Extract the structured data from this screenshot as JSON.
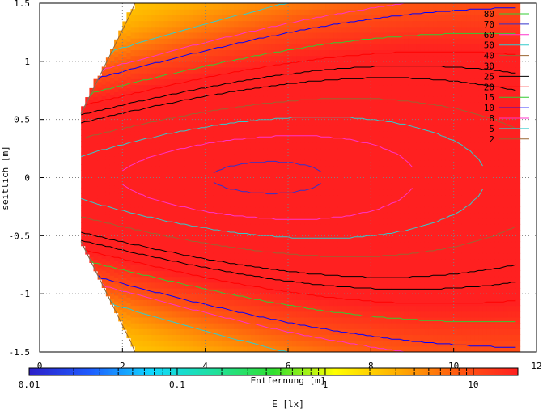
{
  "chart_data": {
    "type": "heatmap",
    "title": "",
    "xlabel": "Entfernung [m]",
    "ylabel": "seitlich [m]",
    "colorbar_label": "E [lx]",
    "xlim": [
      0,
      12
    ],
    "ylim": [
      -1.5,
      1.5
    ],
    "x_ticks": [
      "0",
      "2",
      "4",
      "6",
      "8",
      "10",
      "12"
    ],
    "x_tick_values": [
      0,
      2,
      4,
      6,
      8,
      10,
      12
    ],
    "y_ticks": [
      "1.5",
      "1",
      "0.5",
      "0",
      "-0.5",
      "-1",
      "-1.5"
    ],
    "y_tick_values": [
      1.5,
      1,
      0.5,
      0,
      -0.5,
      -1,
      -1.5
    ],
    "grid": true,
    "colorbar_scale": "log",
    "colorbar_range": [
      0.01,
      20
    ],
    "colorbar_ticks": [
      "0.01",
      "0.1",
      "1",
      "10"
    ],
    "colorbar_tick_values": [
      0.01,
      0.1,
      1,
      10
    ],
    "colorbar_stops": [
      "#2d1fc8",
      "#1e5cff",
      "#10d8ff",
      "#20e0a0",
      "#30e030",
      "#ffff00",
      "#ffb000",
      "#ff5a10",
      "#ff2020"
    ],
    "legend_position": "top-right",
    "legend": [
      {
        "label": "80",
        "color": "#33cc33"
      },
      {
        "label": "70",
        "color": "#3333cc"
      },
      {
        "label": "60",
        "color": "#ff33cc"
      },
      {
        "label": "50",
        "color": "#33cccc"
      },
      {
        "label": "40",
        "color": "#996633"
      },
      {
        "label": "30",
        "color": "#000000"
      },
      {
        "label": "25",
        "color": "#000000"
      },
      {
        "label": "20",
        "color": "#ff0000"
      },
      {
        "label": "15",
        "color": "#33cc33"
      },
      {
        "label": "10",
        "color": "#0000ff"
      },
      {
        "label": "8",
        "color": "#ff33cc"
      },
      {
        "label": "5",
        "color": "#33cccc"
      },
      {
        "label": "2",
        "color": "#996633"
      }
    ]
  }
}
